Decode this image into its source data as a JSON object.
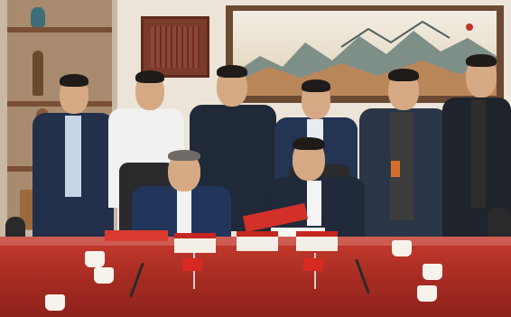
{
  "scene": {
    "description_colors": {
      "table": "#b8322a",
      "wall": "#ece4d8",
      "suit_dark": "#1f2937",
      "suit_navy": "#233049"
    }
  }
}
